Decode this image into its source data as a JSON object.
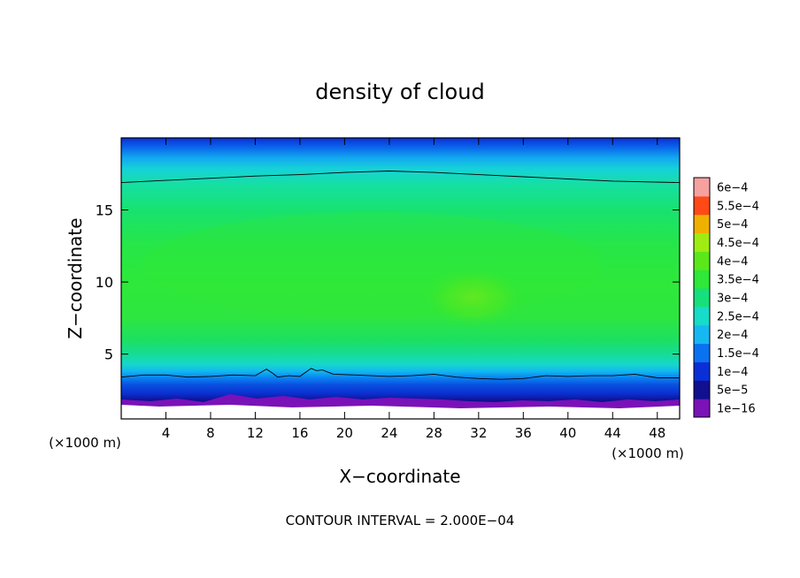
{
  "chart_data": {
    "type": "heatmap",
    "title": "density of cloud",
    "xlabel": "X−coordinate",
    "ylabel": "Z−coordinate",
    "x_unit": "(×1000 m)",
    "y_unit": "(×1000 m)",
    "xlim": [
      0,
      50
    ],
    "ylim": [
      0.5,
      20
    ],
    "x_ticks": [
      4,
      8,
      12,
      16,
      20,
      24,
      28,
      32,
      36,
      40,
      44,
      48
    ],
    "y_ticks": [
      5,
      10,
      15
    ],
    "footer": "CONTOUR INTERVAL = 2.000E−04",
    "colorbar": {
      "levels": [
        "1e−16",
        "5e−5",
        "1e−4",
        "1.5e−4",
        "2e−4",
        "2.5e−4",
        "3e−4",
        "3.5e−4",
        "4e−4",
        "4.5e−4",
        "5e−4",
        "5.5e−4",
        "6e−4"
      ],
      "colors": [
        "#7a12b8",
        "#101090",
        "#0b2fd6",
        "#0a72f0",
        "#16b8f2",
        "#16dcc8",
        "#16e07c",
        "#2ee83a",
        "#5be81a",
        "#a0ec12",
        "#f0b000",
        "#ff4a18",
        "#f6a0a0"
      ]
    },
    "contour_lines": [
      {
        "level": 0.0002,
        "points": [
          [
            0,
            16.9
          ],
          [
            4,
            17.05
          ],
          [
            8,
            17.2
          ],
          [
            12,
            17.35
          ],
          [
            16,
            17.45
          ],
          [
            20,
            17.6
          ],
          [
            24,
            17.7
          ],
          [
            28,
            17.6
          ],
          [
            32,
            17.45
          ],
          [
            36,
            17.3
          ],
          [
            40,
            17.15
          ],
          [
            44,
            17.0
          ],
          [
            50,
            16.9
          ]
        ]
      },
      {
        "level": 0.0002,
        "points": [
          [
            0,
            3.4
          ],
          [
            2,
            3.55
          ],
          [
            4,
            3.55
          ],
          [
            6,
            3.4
          ],
          [
            8,
            3.45
          ],
          [
            10,
            3.55
          ],
          [
            12,
            3.5
          ],
          [
            13,
            3.95
          ],
          [
            13.5,
            3.7
          ],
          [
            14,
            3.4
          ],
          [
            15,
            3.5
          ],
          [
            16,
            3.45
          ],
          [
            17,
            4.0
          ],
          [
            17.5,
            3.85
          ],
          [
            18,
            3.9
          ],
          [
            19,
            3.6
          ],
          [
            21,
            3.55
          ],
          [
            24,
            3.45
          ],
          [
            26,
            3.5
          ],
          [
            28,
            3.6
          ],
          [
            30,
            3.4
          ],
          [
            32,
            3.3
          ],
          [
            34,
            3.25
          ],
          [
            36,
            3.3
          ],
          [
            38,
            3.5
          ],
          [
            40,
            3.45
          ],
          [
            42,
            3.5
          ],
          [
            44,
            3.5
          ],
          [
            46,
            3.6
          ],
          [
            48,
            3.35
          ],
          [
            50,
            3.35
          ]
        ]
      }
    ]
  }
}
